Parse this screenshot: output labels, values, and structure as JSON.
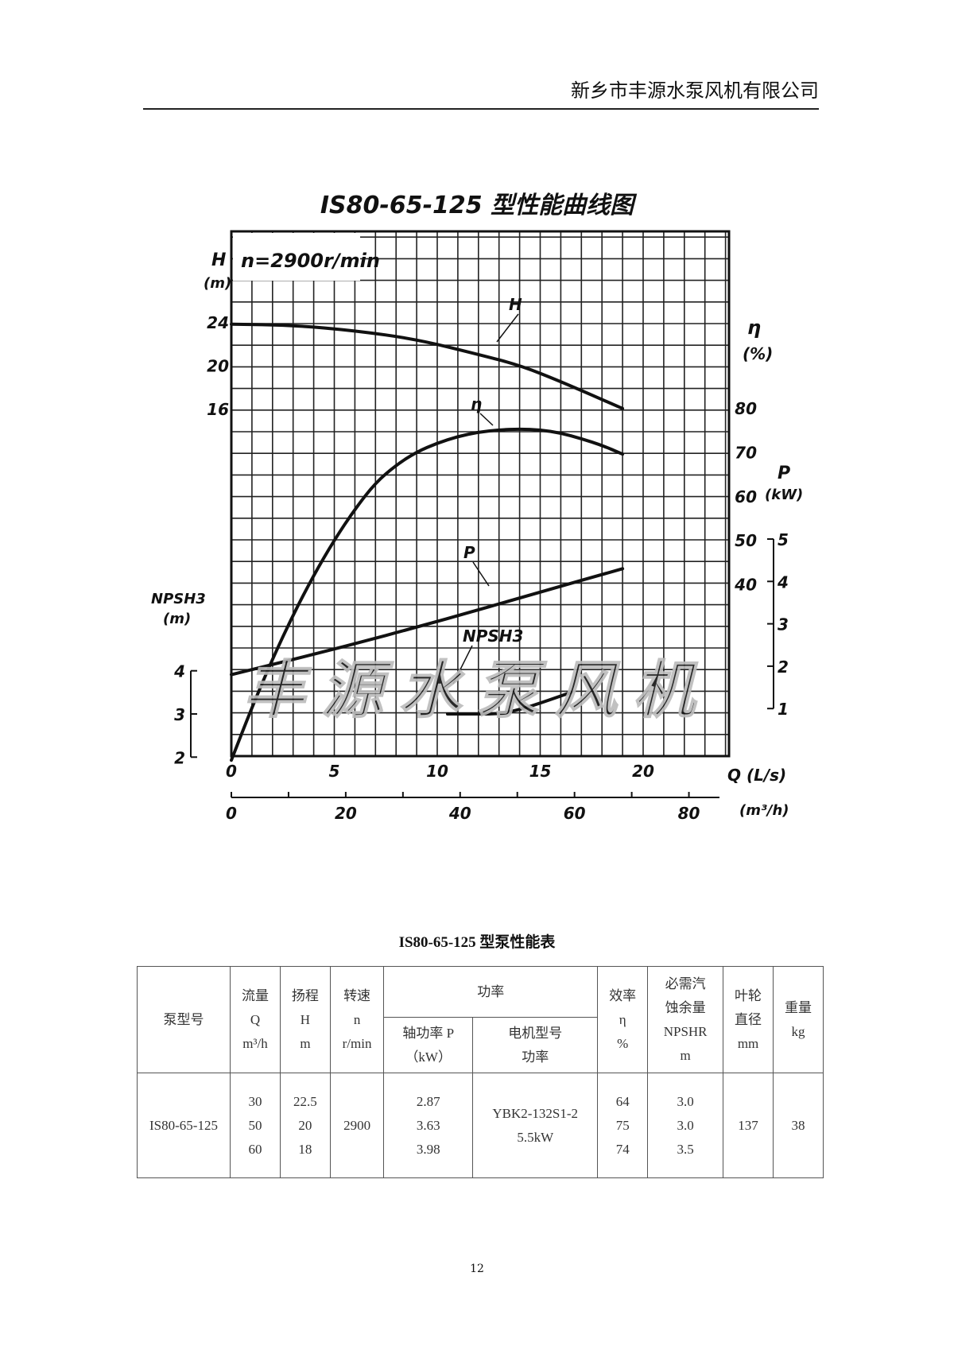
{
  "header": {
    "company": "新乡市丰源水泵风机有限公司"
  },
  "chart_data": {
    "type": "line",
    "title": "IS80-65-125 型性能曲线图",
    "speed_label": "n=2900r/min",
    "watermark": "丰源水泵风机",
    "grid": true,
    "x": {
      "label": "Q (L/s)",
      "range": [
        0,
        24
      ],
      "ticks": [
        0,
        5,
        10,
        15,
        20
      ]
    },
    "x2": {
      "label": "(m³/h)",
      "ticks": [
        0,
        20,
        40,
        60,
        80
      ]
    },
    "axes": {
      "H": {
        "label": "H",
        "unit": "(m)",
        "ticks": [
          16,
          20,
          24
        ]
      },
      "eta": {
        "label": "η",
        "unit": "(%)",
        "ticks": [
          40,
          50,
          60,
          70,
          80
        ]
      },
      "P": {
        "label": "P",
        "unit": "(kW)",
        "ticks": [
          1,
          2,
          3,
          4,
          5
        ]
      },
      "NPSH": {
        "label": "NPSH3",
        "unit": "(m)",
        "ticks": [
          2,
          3,
          4
        ]
      }
    },
    "series": [
      {
        "name": "H",
        "axis": "H",
        "x": [
          0,
          3,
          6,
          9,
          12,
          14,
          16,
          19
        ],
        "y": [
          23.8,
          23.7,
          23.2,
          22.4,
          21.0,
          20.0,
          18.5,
          16.0
        ]
      },
      {
        "name": "η",
        "axis": "eta",
        "x": [
          0,
          1,
          2,
          3,
          4,
          5,
          6,
          7,
          8,
          9,
          10,
          11,
          12,
          13,
          14,
          15,
          16,
          17,
          18,
          19
        ],
        "y": [
          0,
          12,
          23,
          33,
          42,
          50,
          57,
          63,
          67,
          70,
          72,
          73.5,
          74.5,
          75,
          75.2,
          75,
          74.3,
          73,
          71.5,
          69.5
        ]
      },
      {
        "name": "P",
        "axis": "P",
        "x": [
          0,
          5,
          10,
          15,
          19
        ],
        "y": [
          1.8,
          2.4,
          3.05,
          3.75,
          4.3
        ]
      },
      {
        "name": "NPSH3",
        "axis": "NPSH",
        "x": [
          10.5,
          12,
          13,
          14,
          15,
          16.5
        ],
        "y": [
          3.0,
          3.0,
          3.0,
          3.1,
          3.25,
          3.5
        ]
      }
    ]
  },
  "table": {
    "title": "IS80-65-125 型泵性能表",
    "headers": {
      "model": "泵型号",
      "flow": [
        "流量",
        "Q",
        "m³/h"
      ],
      "head": [
        "扬程",
        "H",
        "m"
      ],
      "speed": [
        "转速",
        "n",
        "r/min"
      ],
      "power": "功率",
      "shaft_power": [
        "轴功率 P",
        "（kW）"
      ],
      "motor": [
        "电机型号",
        "功率"
      ],
      "eff": [
        "效率",
        "η",
        "%"
      ],
      "npsh": [
        "必需汽",
        "蚀余量",
        "NPSHR",
        "m"
      ],
      "impeller": [
        "叶轮",
        "直径",
        "mm"
      ],
      "weight": [
        "重量",
        "kg"
      ]
    },
    "row": {
      "model": "IS80-65-125",
      "flow": [
        "30",
        "50",
        "60"
      ],
      "head": [
        "22.5",
        "20",
        "18"
      ],
      "speed": "2900",
      "shaft_power": [
        "2.87",
        "3.63",
        "3.98"
      ],
      "motor": [
        "YBK2-132S1-2",
        "5.5kW"
      ],
      "eff": [
        "64",
        "75",
        "74"
      ],
      "npsh": [
        "3.0",
        "3.0",
        "3.5"
      ],
      "impeller": "137",
      "weight": "38"
    }
  },
  "page_number": "12"
}
